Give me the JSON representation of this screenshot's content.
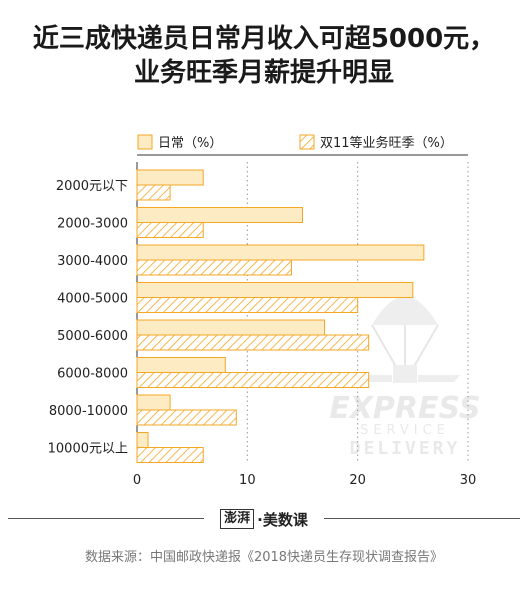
{
  "title_line1": "近三成快递员日常月收入可超5000元，",
  "title_line2": "业务旺季月薪提升明显",
  "chart_data": {
    "type": "bar",
    "orientation": "horizontal",
    "categories": [
      "2000元以下",
      "2000-3000",
      "3000-4000",
      "4000-5000",
      "5000-6000",
      "6000-8000",
      "8000-10000",
      "10000元以上"
    ],
    "series": [
      {
        "name": "日常（%）",
        "values": [
          6,
          15,
          26,
          25,
          17,
          8,
          3,
          1
        ],
        "color": "#fdebc4",
        "stroke": "#f5a623"
      },
      {
        "name": "双11等业务旺季（%）",
        "values": [
          3,
          6,
          14,
          20,
          21,
          21,
          9,
          6
        ],
        "color": "#ffffff",
        "stroke": "#f5a623",
        "hatched": true
      }
    ],
    "xlim": [
      0,
      30
    ],
    "xticks": [
      0,
      10,
      20,
      30
    ],
    "grid": true,
    "legend": "top"
  },
  "watermark": {
    "line1": "EXPRESS",
    "line2": "SERVICE",
    "line3": "DELIVERY"
  },
  "brand": {
    "logo": "澎湃",
    "name": "·美数课"
  },
  "source": "数据来源：中国邮政快递报《2018快递员生存现状调查报告》"
}
